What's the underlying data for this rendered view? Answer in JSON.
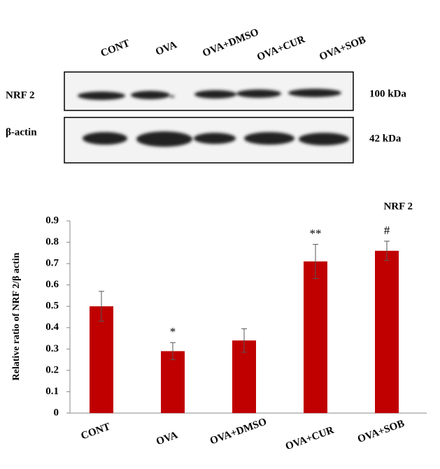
{
  "blot": {
    "lanes": [
      "CONT",
      "OVA",
      "OVA+DMSO",
      "OVA+CUR",
      "OVA+SOB"
    ],
    "rows": [
      {
        "label": "NRF 2",
        "size": "100 kDa"
      },
      {
        "label": "β-actin",
        "size": "42 kDa"
      }
    ]
  },
  "chart_data": {
    "type": "bar",
    "title": "NRF 2",
    "y_label": "Relative ratio of NRF 2/β actin",
    "categories": [
      "CONT",
      "OVA",
      "OVA+DMSO",
      "OVA+CUR",
      "OVA+SOB"
    ],
    "values": [
      0.5,
      0.29,
      0.34,
      0.71,
      0.76
    ],
    "errors": [
      0.07,
      0.04,
      0.055,
      0.08,
      0.045
    ],
    "annotations": [
      null,
      "*",
      null,
      "**",
      "#"
    ],
    "color": "#c00000",
    "ylim": [
      0,
      0.9
    ],
    "yticks": [
      0,
      0.1,
      0.2,
      0.3,
      0.4,
      0.5,
      0.6,
      0.7,
      0.8,
      0.9
    ],
    "grid": false
  }
}
